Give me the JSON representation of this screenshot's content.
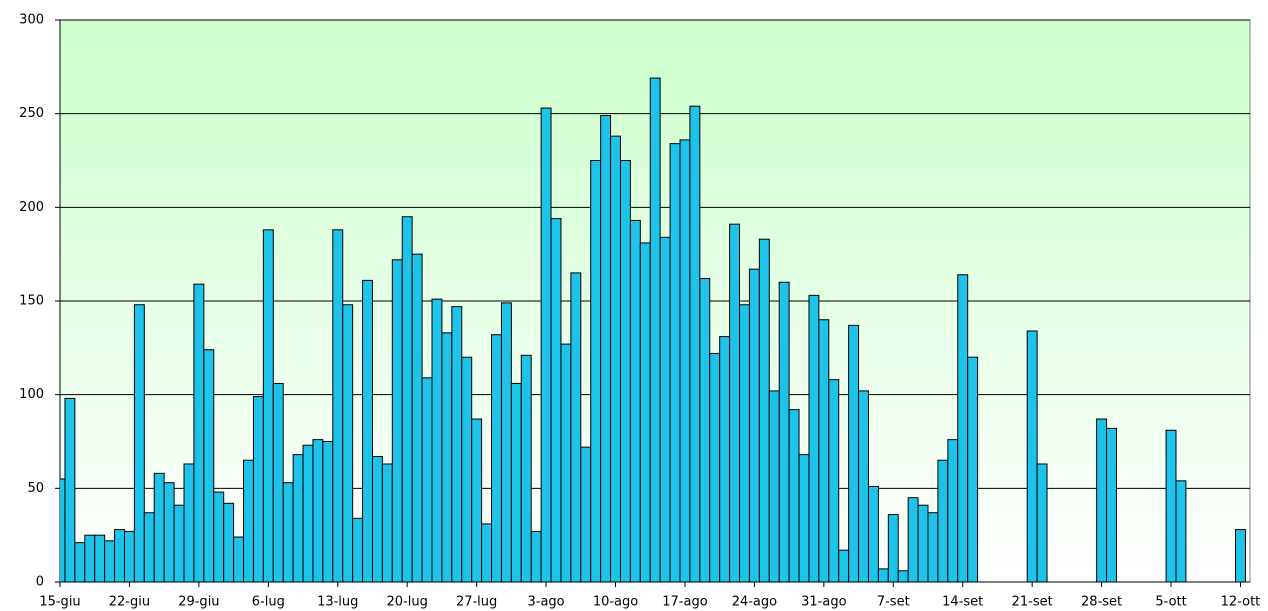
{
  "chart_data": {
    "type": "bar",
    "categories": [
      "15-giu",
      null,
      null,
      null,
      null,
      null,
      null,
      "22-giu",
      null,
      null,
      null,
      null,
      null,
      null,
      "29-giu",
      null,
      null,
      null,
      null,
      null,
      null,
      "6-lug",
      null,
      null,
      null,
      null,
      null,
      null,
      "13-lug",
      null,
      null,
      null,
      null,
      null,
      null,
      "20-lug",
      null,
      null,
      null,
      null,
      null,
      null,
      "27-lug",
      null,
      null,
      null,
      null,
      null,
      null,
      "3-ago",
      null,
      null,
      null,
      null,
      null,
      null,
      "10-ago",
      null,
      null,
      null,
      null,
      null,
      null,
      "17-ago",
      null,
      null,
      null,
      null,
      null,
      null,
      "24-ago",
      null,
      null,
      null,
      null,
      null,
      null,
      "31-ago",
      null,
      null,
      null,
      null,
      null,
      null,
      "7-set",
      null,
      null,
      null,
      null,
      null,
      null,
      "14-set",
      null,
      null,
      null,
      null,
      null,
      null,
      "21-set",
      null,
      null,
      null,
      null,
      null,
      null,
      "28-set",
      null,
      null,
      null,
      null,
      null,
      null,
      "5-ott",
      null,
      null,
      null,
      null,
      null,
      null,
      "12-ott"
    ],
    "values": [
      55,
      98,
      21,
      25,
      25,
      22,
      28,
      27,
      148,
      37,
      58,
      53,
      41,
      63,
      159,
      124,
      48,
      42,
      24,
      65,
      99,
      188,
      106,
      53,
      68,
      73,
      76,
      75,
      188,
      148,
      34,
      161,
      67,
      63,
      172,
      195,
      175,
      109,
      151,
      133,
      147,
      120,
      87,
      31,
      132,
      149,
      106,
      121,
      27,
      253,
      194,
      127,
      165,
      72,
      225,
      249,
      238,
      225,
      193,
      181,
      269,
      184,
      234,
      236,
      254,
      162,
      122,
      131,
      191,
      148,
      167,
      183,
      102,
      160,
      92,
      68,
      153,
      140,
      108,
      17,
      137,
      102,
      51,
      7,
      36,
      6,
      45,
      41,
      37,
      65,
      76,
      164,
      120,
      null,
      null,
      null,
      null,
      null,
      134,
      63,
      null,
      null,
      null,
      null,
      null,
      87,
      82,
      null,
      null,
      null,
      null,
      null,
      81,
      54,
      null,
      null,
      null,
      null,
      null,
      28
    ],
    "color": "#1ec3ea",
    "ylim": [
      0,
      300
    ],
    "yticks": [
      0,
      50,
      100,
      150,
      200,
      250,
      300
    ],
    "grid": true
  }
}
